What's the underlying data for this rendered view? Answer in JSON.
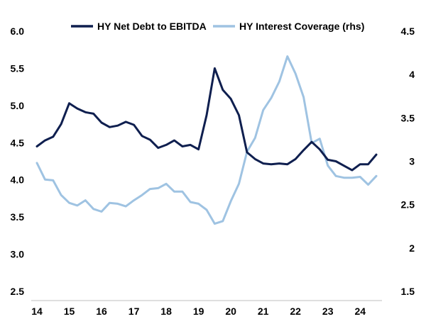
{
  "chart_data": {
    "type": "line",
    "title": "",
    "xlabel": "",
    "ylabel_left": "",
    "ylabel_right": "",
    "x_ticks": [
      "14",
      "15",
      "16",
      "17",
      "18",
      "19",
      "20",
      "21",
      "22",
      "23",
      "24"
    ],
    "x_range": [
      14,
      24.5
    ],
    "y_left": {
      "range": [
        2.5,
        6.0
      ],
      "ticks": [
        "2.5",
        "3.0",
        "3.5",
        "4.0",
        "4.5",
        "5.0",
        "5.5",
        "6.0"
      ]
    },
    "y_right": {
      "range": [
        1.5,
        4.5
      ],
      "ticks": [
        "1.5",
        "2",
        "2.5",
        "3",
        "3.5",
        "4",
        "4.5"
      ]
    },
    "grid": false,
    "legend_position": "top",
    "colors": {
      "dark": "#0f1f4f",
      "light": "#9fc3e2"
    },
    "series": [
      {
        "name": "HY Net Debt to EBITDA",
        "axis": "left",
        "color": "#0f1f4f",
        "x": [
          14.0,
          14.25,
          14.5,
          14.75,
          15.0,
          15.25,
          15.5,
          15.75,
          16.0,
          16.25,
          16.5,
          16.75,
          17.0,
          17.25,
          17.5,
          17.75,
          18.0,
          18.25,
          18.5,
          18.75,
          19.0,
          19.25,
          19.5,
          19.75,
          20.0,
          20.25,
          20.5,
          20.75,
          21.0,
          21.25,
          21.5,
          21.75,
          22.0,
          22.25,
          22.5,
          22.75,
          23.0,
          23.25,
          23.5,
          23.75,
          24.0,
          24.25,
          24.5
        ],
        "values": [
          4.45,
          4.53,
          4.58,
          4.75,
          5.03,
          4.96,
          4.91,
          4.89,
          4.77,
          4.71,
          4.73,
          4.78,
          4.74,
          4.59,
          4.54,
          4.43,
          4.47,
          4.53,
          4.45,
          4.47,
          4.41,
          4.87,
          5.5,
          5.21,
          5.09,
          4.87,
          4.37,
          4.28,
          4.22,
          4.21,
          4.22,
          4.21,
          4.28,
          4.4,
          4.51,
          4.41,
          4.27,
          4.25,
          4.19,
          4.13,
          4.21,
          4.21,
          4.34
        ]
      },
      {
        "name": "HY Interest Coverage (rhs)",
        "axis": "right",
        "color": "#9fc3e2",
        "x": [
          14.0,
          14.25,
          14.5,
          14.75,
          15.0,
          15.25,
          15.5,
          15.75,
          16.0,
          16.25,
          16.5,
          16.75,
          17.0,
          17.25,
          17.5,
          17.75,
          18.0,
          18.25,
          18.5,
          18.75,
          19.0,
          19.25,
          19.5,
          19.75,
          20.0,
          20.25,
          20.5,
          20.75,
          21.0,
          21.25,
          21.5,
          21.75,
          22.0,
          22.25,
          22.5,
          22.75,
          23.0,
          23.25,
          23.5,
          23.75,
          24.0,
          24.25,
          24.5
        ],
        "values": [
          2.98,
          2.79,
          2.78,
          2.61,
          2.52,
          2.49,
          2.55,
          2.45,
          2.42,
          2.52,
          2.51,
          2.48,
          2.55,
          2.61,
          2.68,
          2.69,
          2.74,
          2.65,
          2.65,
          2.53,
          2.51,
          2.44,
          2.28,
          2.31,
          2.54,
          2.74,
          3.11,
          3.27,
          3.59,
          3.73,
          3.92,
          4.21,
          4.01,
          3.74,
          3.21,
          3.26,
          2.95,
          2.83,
          2.81,
          2.81,
          2.82,
          2.73,
          2.83
        ]
      }
    ]
  }
}
